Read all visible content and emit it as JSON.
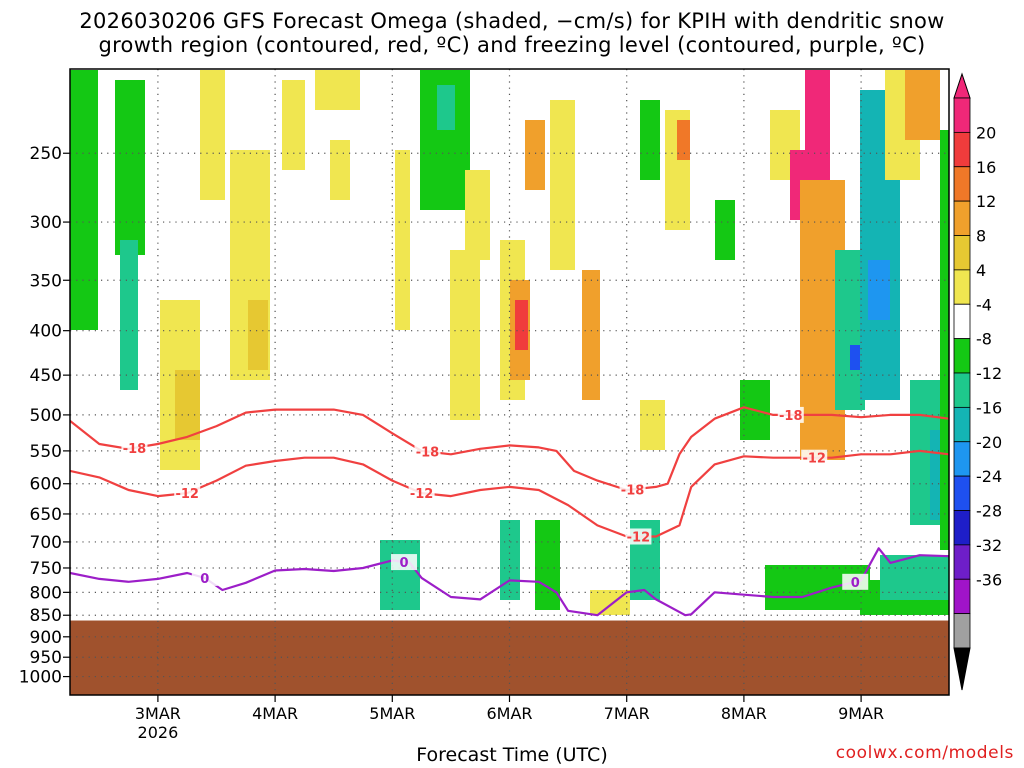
{
  "title": {
    "line1": "2026030206 GFS Forecast Omega (shaded, −cm/s) for KPIH with dendritic snow",
    "line2": "growth region (contoured, red, ºC) and freezing level (contoured, purple, ºC)"
  },
  "credit": "coolwx.com/models",
  "colors": {
    "ground": "#a0522d",
    "isotherm_red": "#f04040",
    "freezing_purple": "#9c1ec8",
    "grid": "#555555"
  },
  "chart_data": {
    "type": "heatmap",
    "xlabel": "Forecast Time (UTC)",
    "x_ticks": [
      {
        "t": 0.75,
        "label": "3MAR",
        "sub": "2026"
      },
      {
        "t": 1.75,
        "label": "4MAR",
        "sub": ""
      },
      {
        "t": 2.75,
        "label": "5MAR",
        "sub": ""
      },
      {
        "t": 3.75,
        "label": "6MAR",
        "sub": ""
      },
      {
        "t": 4.75,
        "label": "7MAR",
        "sub": ""
      },
      {
        "t": 5.75,
        "label": "8MAR",
        "sub": ""
      },
      {
        "t": 6.75,
        "label": "9MAR",
        "sub": ""
      }
    ],
    "x_range_days": [
      0,
      7.5
    ],
    "y_scale": "log-pressure",
    "y_ticks": [
      250,
      300,
      350,
      400,
      450,
      500,
      550,
      600,
      650,
      700,
      750,
      800,
      850,
      900,
      950,
      1000
    ],
    "y_range_hpa": [
      200,
      1050
    ],
    "ground_level_hpa": 862,
    "grid": true,
    "colorbar": {
      "labels": [
        "20",
        "16",
        "12",
        "8",
        "4",
        "-4",
        "-8",
        "-12",
        "-16",
        "-20",
        "-24",
        "-28",
        "-32",
        "-36"
      ],
      "bands": [
        "#f02878",
        "#f03c3c",
        "#f07828",
        "#f0a02c",
        "#e6c832",
        "#f0e650",
        "#ffffff",
        "#14c814",
        "#1ec88c",
        "#14b4b4",
        "#1e96f0",
        "#1e50f0",
        "#1e1ec8",
        "#6e1ec8",
        "#a014c8",
        "#a0a0a0"
      ]
    },
    "series": [
      {
        "name": "-18",
        "kind": "isotherm",
        "label": "-18",
        "points": [
          [
            0,
            508
          ],
          [
            0.25,
            540
          ],
          [
            0.5,
            547
          ],
          [
            0.75,
            540
          ],
          [
            1.0,
            530
          ],
          [
            1.25,
            515
          ],
          [
            1.5,
            497
          ],
          [
            1.75,
            493
          ],
          [
            2.0,
            493
          ],
          [
            2.25,
            493
          ],
          [
            2.5,
            500
          ],
          [
            2.75,
            525
          ],
          [
            3.0,
            550
          ],
          [
            3.25,
            555
          ],
          [
            3.5,
            547
          ],
          [
            3.75,
            542
          ],
          [
            4.0,
            545
          ],
          [
            4.15,
            550
          ],
          [
            4.3,
            580
          ],
          [
            4.5,
            595
          ],
          [
            4.75,
            610
          ],
          [
            5.0,
            605
          ],
          [
            5.1,
            600
          ],
          [
            5.2,
            555
          ],
          [
            5.3,
            530
          ],
          [
            5.5,
            505
          ],
          [
            5.75,
            490
          ],
          [
            6.0,
            500
          ],
          [
            6.25,
            500
          ],
          [
            6.5,
            500
          ],
          [
            6.75,
            503
          ],
          [
            7.0,
            500
          ],
          [
            7.25,
            500
          ],
          [
            7.5,
            505
          ]
        ],
        "labels_at": [
          0.55,
          3.05,
          4.8,
          6.15
        ]
      },
      {
        "name": "-12",
        "kind": "isotherm",
        "label": "-12",
        "points": [
          [
            0,
            580
          ],
          [
            0.25,
            590
          ],
          [
            0.5,
            610
          ],
          [
            0.75,
            620
          ],
          [
            1.0,
            615
          ],
          [
            1.25,
            595
          ],
          [
            1.5,
            572
          ],
          [
            1.75,
            565
          ],
          [
            2.0,
            560
          ],
          [
            2.25,
            560
          ],
          [
            2.5,
            570
          ],
          [
            2.75,
            595
          ],
          [
            3.0,
            615
          ],
          [
            3.25,
            620
          ],
          [
            3.5,
            610
          ],
          [
            3.75,
            605
          ],
          [
            4.0,
            610
          ],
          [
            4.25,
            635
          ],
          [
            4.5,
            670
          ],
          [
            4.75,
            690
          ],
          [
            5.0,
            690
          ],
          [
            5.2,
            670
          ],
          [
            5.3,
            605
          ],
          [
            5.5,
            570
          ],
          [
            5.75,
            558
          ],
          [
            6.0,
            560
          ],
          [
            6.25,
            560
          ],
          [
            6.5,
            560
          ],
          [
            6.75,
            555
          ],
          [
            7.0,
            555
          ],
          [
            7.25,
            550
          ],
          [
            7.5,
            555
          ]
        ],
        "labels_at": [
          1.0,
          3.0,
          4.85,
          6.35
        ]
      },
      {
        "name": "0",
        "kind": "freezing",
        "label": "0",
        "points": [
          [
            0,
            760
          ],
          [
            0.25,
            772
          ],
          [
            0.5,
            778
          ],
          [
            0.75,
            772
          ],
          [
            1.0,
            760
          ],
          [
            1.15,
            770
          ],
          [
            1.3,
            795
          ],
          [
            1.5,
            780
          ],
          [
            1.75,
            755
          ],
          [
            2.0,
            752
          ],
          [
            2.25,
            756
          ],
          [
            2.5,
            750
          ],
          [
            2.75,
            735
          ],
          [
            2.9,
            740
          ],
          [
            3.0,
            770
          ],
          [
            3.25,
            810
          ],
          [
            3.5,
            815
          ],
          [
            3.75,
            775
          ],
          [
            4.0,
            778
          ],
          [
            4.15,
            800
          ],
          [
            4.25,
            840
          ],
          [
            4.5,
            850
          ],
          [
            4.75,
            800
          ],
          [
            4.9,
            795
          ],
          [
            5.0,
            815
          ],
          [
            5.25,
            850
          ],
          [
            5.3,
            848
          ],
          [
            5.5,
            800
          ],
          [
            5.75,
            805
          ],
          [
            6.0,
            810
          ],
          [
            6.25,
            810
          ],
          [
            6.5,
            790
          ],
          [
            6.75,
            775
          ],
          [
            6.9,
            712
          ],
          [
            7.0,
            740
          ],
          [
            7.25,
            725
          ],
          [
            7.5,
            727
          ]
        ],
        "labels_at": [
          1.15,
          2.85,
          6.7
        ]
      }
    ]
  }
}
